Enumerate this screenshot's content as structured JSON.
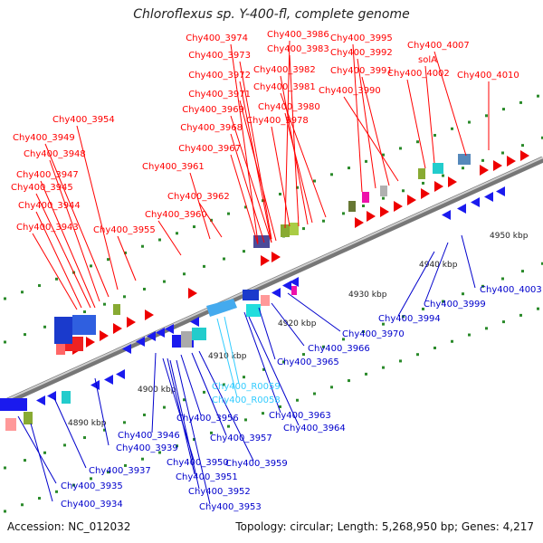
{
  "title": "Chloroflexus sp. Y-400-fl, complete genome",
  "footer": {
    "accession": "Accession: NC_012032",
    "summary": "Topology: circular; Length: 5,268,950 bp; Genes: 4,217"
  },
  "colors": {
    "forward_label": "#ff0000",
    "reverse_label": "#0000cc",
    "rna_label": "#33ccff",
    "backbone": "#999999",
    "tick": "#2a8a2a"
  },
  "scale_labels": [
    "4890 kbp",
    "4900 kbp",
    "4910 kbp",
    "4920 kbp",
    "4930 kbp",
    "4940 kbp",
    "4950 kbp"
  ],
  "forward_genes": [
    "Chy400_3974",
    "Chy400_3986",
    "Chy400_3995",
    "Chy400_3973",
    "Chy400_3983",
    "Chy400_3992",
    "Chy400_4007",
    "Chy400_3972",
    "Chy400_3982",
    "Chy400_3991",
    "solA",
    "Chy400_4002",
    "Chy400_4010",
    "Chy400_3971",
    "Chy400_3981",
    "Chy400_3990",
    "Chy400_3969",
    "Chy400_3980",
    "Chy400_3954",
    "Chy400_3968",
    "Chy400_3978",
    "Chy400_3949",
    "Chy400_3967",
    "Chy400_3948",
    "Chy400_3961",
    "Chy400_3947",
    "Chy400_3945",
    "Chy400_3962",
    "Chy400_3944",
    "Chy400_3960",
    "Chy400_3943",
    "Chy400_3955"
  ],
  "reverse_genes": [
    "Chy400_4003",
    "Chy400_3999",
    "Chy400_3994",
    "Chy400_3970",
    "Chy400_3966",
    "Chy400_3965",
    "Chy400_3963",
    "Chy400_3964",
    "Chy400_3946",
    "Chy400_3956",
    "Chy400_3939",
    "Chy400_3957",
    "Chy400_3937",
    "Chy400_3950",
    "Chy400_3959",
    "Chy400_3951",
    "Chy400_3935",
    "Chy400_3952",
    "Chy400_3934",
    "Chy400_3953"
  ],
  "rna_genes": [
    "Chy400_R0059",
    "Chy400_R0058"
  ]
}
